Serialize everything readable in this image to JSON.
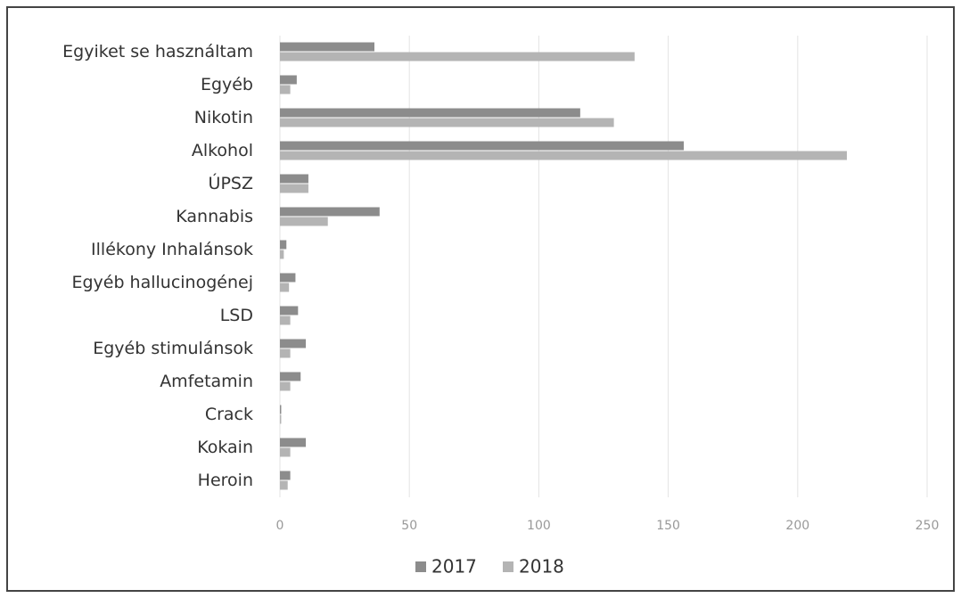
{
  "chart_data": {
    "type": "hbar",
    "categories": [
      "Egyiket se használtam",
      "Egyéb",
      "Nikotin ",
      "Alkohol",
      "ÚPSZ",
      "Kannabis",
      "Illékony Inhalánsok",
      "Egyéb hallucinogénej",
      "LSD",
      "Egyéb stimulánsok",
      "Amfetamin",
      "Crack",
      "Kokain",
      "Heroin"
    ],
    "series": [
      {
        "name": "2017",
        "color": "#8c8c8c",
        "values": [
          36.5,
          6.5,
          116,
          156,
          11,
          38.5,
          2.5,
          6,
          7,
          10,
          8,
          0.5,
          10,
          4
        ]
      },
      {
        "name": "2018",
        "color": "#b4b4b4",
        "values": [
          137,
          4,
          129,
          219,
          11,
          18.5,
          1.5,
          3.5,
          4,
          4,
          4,
          0.5,
          4,
          3
        ]
      }
    ],
    "xlim": [
      0,
      250
    ],
    "xticks": [
      0,
      50,
      100,
      150,
      200,
      250
    ],
    "grid": true,
    "legend": "bottom"
  }
}
